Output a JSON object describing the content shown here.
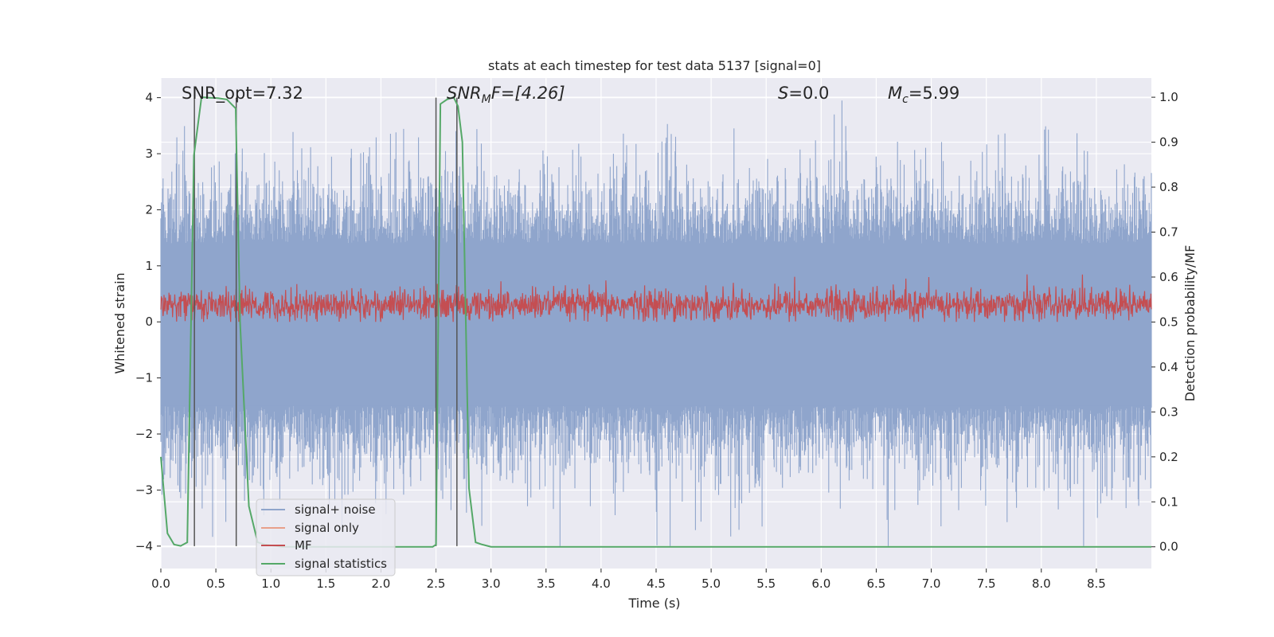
{
  "chart_data": {
    "type": "line",
    "title": "stats at each timestep for test data 5137 [signal=0]",
    "xlabel": "Time (s)",
    "ylabel_left": "Whitened strain",
    "ylabel_right": "Detection probability/MF",
    "xlim": [
      0,
      9.0
    ],
    "ylim_left": [
      -4.4,
      4.35
    ],
    "ylim_right": [
      -0.0483,
      1.0427
    ],
    "x_ticks": [
      "0.0",
      "0.5",
      "1.0",
      "1.5",
      "2.0",
      "2.5",
      "3.0",
      "3.5",
      "4.0",
      "4.5",
      "5.0",
      "5.5",
      "6.0",
      "6.5",
      "7.0",
      "7.5",
      "8.0",
      "8.5"
    ],
    "y_ticks_left": [
      "−4",
      "−3",
      "−2",
      "−1",
      "0",
      "1",
      "2",
      "3",
      "4"
    ],
    "y_ticks_right": [
      "0.0",
      "0.1",
      "0.2",
      "0.3",
      "0.4",
      "0.5",
      "0.6",
      "0.7",
      "0.8",
      "0.9",
      "1.0"
    ],
    "grid": true,
    "legend_position": "lower-left",
    "annotations": {
      "snr_opt": "SNR_opt=7.32",
      "snr_mf_main": "SNR",
      "snr_mf_sub": "M",
      "snr_mf_tail": "F=[4.26]",
      "s_main": "S",
      "s_tail": "=0.0",
      "mc_main": "M",
      "mc_sub": "c",
      "mc_tail": "=5.99"
    },
    "series": [
      {
        "name": "signal+ noise",
        "color": "#8fa5cc",
        "axis": "left",
        "description_envelope": {
          "typical_min": -2.5,
          "typical_max": 2.8,
          "max": 3.95,
          "min": -4.0
        }
      },
      {
        "name": "signal only",
        "color": "#e8a08a",
        "axis": "left",
        "values": []
      },
      {
        "name": "MF",
        "color": "#c44e52",
        "axis": "left",
        "typical_range": [
          0.0,
          0.7
        ],
        "max": 1.0
      },
      {
        "name": "signal statistics",
        "color": "#55a868",
        "axis": "right",
        "x": [
          0.0,
          0.06,
          0.12,
          0.18,
          0.24,
          0.3,
          0.37,
          0.44,
          0.52,
          0.6,
          0.68,
          0.72,
          0.8,
          0.88,
          0.95,
          1.1,
          2.47,
          2.5,
          2.54,
          2.6,
          2.66,
          2.7,
          2.74,
          2.8,
          2.86,
          2.92,
          3.0,
          9.0
        ],
        "y": [
          0.2,
          0.03,
          0.005,
          0.002,
          0.01,
          0.87,
          1.0,
          0.999,
          0.998,
          0.995,
          0.975,
          0.5,
          0.09,
          0.01,
          0.005,
          0.0,
          0.0,
          0.005,
          0.985,
          0.995,
          1.0,
          0.98,
          0.9,
          0.13,
          0.01,
          0.005,
          0.0,
          0.0
        ]
      }
    ],
    "vertical_markers_s": [
      0.305,
      0.685,
      2.5,
      2.69
    ]
  }
}
